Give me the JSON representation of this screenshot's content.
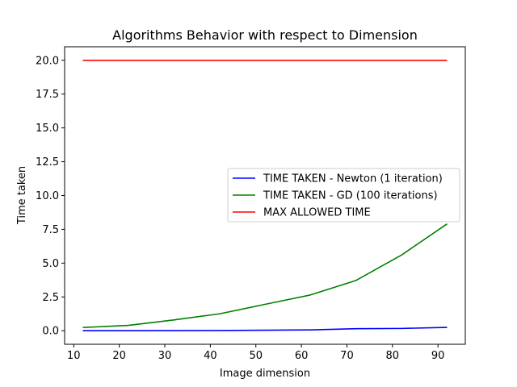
{
  "chart_data": {
    "type": "line",
    "title": "Algorithms Behavior with respect to Dimension",
    "xlabel": "Image dimension",
    "ylabel": "Time taken",
    "xlim": [
      8.0,
      96.0
    ],
    "ylim": [
      -1.0,
      21.0
    ],
    "xticks": [
      10,
      20,
      30,
      40,
      50,
      60,
      70,
      80,
      90
    ],
    "yticks": [
      0.0,
      2.5,
      5.0,
      7.5,
      10.0,
      12.5,
      15.0,
      17.5,
      20.0
    ],
    "ytick_labels": [
      "0.0",
      "2.5",
      "5.0",
      "7.5",
      "10.0",
      "12.5",
      "15.0",
      "17.5",
      "20.0"
    ],
    "x": [
      12,
      22,
      32,
      42,
      52,
      62,
      72,
      82,
      92
    ],
    "series": [
      {
        "name": "TIME TAKEN - Newton (1 iteration)",
        "color": "#0000ff",
        "values": [
          0.0,
          0.0,
          0.01,
          0.02,
          0.04,
          0.06,
          0.15,
          0.17,
          0.25
        ]
      },
      {
        "name": "TIME TAKEN - GD (100 iterations)",
        "color": "#008000",
        "values": [
          0.24,
          0.4,
          0.8,
          1.25,
          1.95,
          2.65,
          3.72,
          5.6,
          7.9
        ]
      },
      {
        "name": "MAX ALLOWED TIME",
        "color": "#ff0000",
        "values": [
          20,
          20,
          20,
          20,
          20,
          20,
          20,
          20,
          20
        ]
      }
    ],
    "grid": false,
    "legend_position": "center-right"
  }
}
